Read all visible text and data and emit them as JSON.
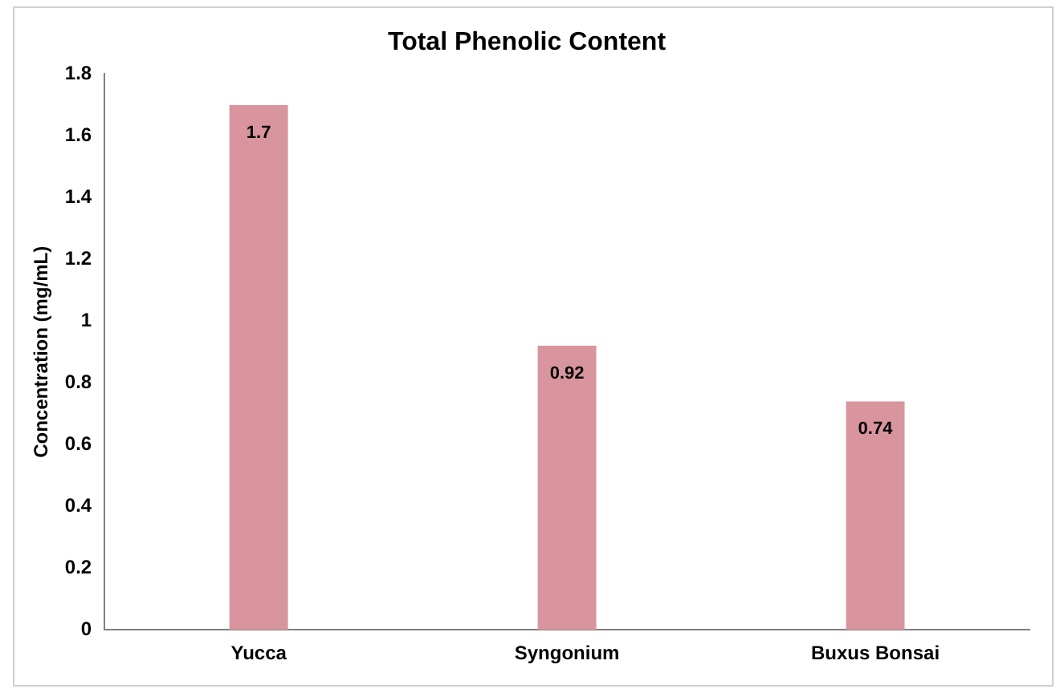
{
  "chart_data": {
    "type": "bar",
    "title": "Total Phenolic Content",
    "ylabel": "Concentration (mg/mL)",
    "categories": [
      "Yucca",
      "Syngonium",
      "Buxus Bonsai"
    ],
    "values": [
      1.7,
      0.92,
      0.74
    ],
    "color": "#d9959e",
    "ylim": [
      0,
      1.8
    ],
    "yticks": [
      0,
      0.2,
      0.4,
      0.6,
      0.8,
      1,
      1.2,
      1.4,
      1.6,
      1.8
    ],
    "grid": false,
    "legend": false,
    "data_labels": true
  }
}
